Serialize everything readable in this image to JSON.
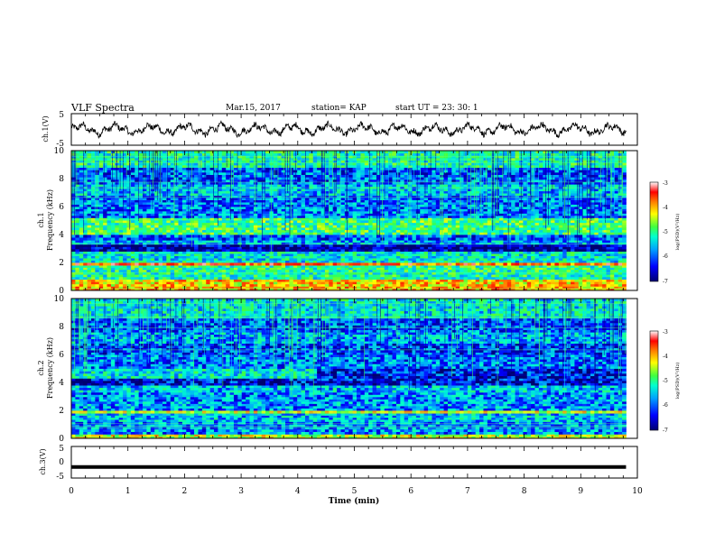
{
  "header": {
    "title": "VLF Spectra",
    "date": "Mar.15, 2017",
    "station": "station= KAP",
    "start_ut": "start  UT  =   23: 30: 1"
  },
  "chart_data": [
    {
      "id": "ch1_waveform",
      "type": "line",
      "ylabel": "ch.1(V)",
      "ylim": [
        -5,
        5
      ],
      "yticks": [
        "5",
        "-5"
      ],
      "xlim": [
        0,
        10
      ],
      "x_end": 9.8,
      "trace_color": "#000000",
      "baseline": 0.0,
      "amplitude": 2.0
    },
    {
      "id": "ch1_spectrogram",
      "type": "heatmap",
      "ylabel_channel": "ch.1",
      "ylabel": "Frequency (kHz)",
      "ylim": [
        0,
        10
      ],
      "yticks": [
        "0",
        "2",
        "4",
        "6",
        "8",
        "10"
      ],
      "xlim": [
        0,
        10
      ],
      "x_end": 9.8,
      "bands": [
        {
          "from": 0.0,
          "to": 0.3,
          "level": -4.2
        },
        {
          "from": 0.3,
          "to": 0.8,
          "level": -4.3
        },
        {
          "from": 0.8,
          "to": 1.5,
          "level": -5.4
        },
        {
          "from": 1.5,
          "to": 1.8,
          "level": -5.3
        },
        {
          "from": 1.8,
          "to": 2.0,
          "level": -3.8
        },
        {
          "from": 2.0,
          "to": 2.8,
          "level": -5.6
        },
        {
          "from": 2.8,
          "to": 3.3,
          "level": -6.8
        },
        {
          "from": 3.3,
          "to": 3.6,
          "level": -5.9
        },
        {
          "from": 3.6,
          "to": 4.0,
          "level": -6.2
        },
        {
          "from": 4.0,
          "to": 5.2,
          "level": -5.2
        },
        {
          "from": 5.2,
          "to": 6.8,
          "level": -6.1
        },
        {
          "from": 6.8,
          "to": 7.6,
          "level": -5.8
        },
        {
          "from": 7.6,
          "to": 8.8,
          "level": -6.2
        },
        {
          "from": 8.8,
          "to": 10.0,
          "level": -5.4
        }
      ],
      "colorbar": {
        "ticks": [
          "-3",
          "-4",
          "-5",
          "-6",
          "-7"
        ],
        "range": [
          -7,
          -3
        ],
        "label": "log(PSD)(V²/Hz)"
      }
    },
    {
      "id": "ch2_spectrogram",
      "type": "heatmap",
      "ylabel_channel": "ch.2",
      "ylabel": "Frequency (kHz)",
      "ylim": [
        0,
        10
      ],
      "yticks": [
        "0",
        "2",
        "4",
        "6",
        "8",
        "10"
      ],
      "xlim": [
        0,
        10
      ],
      "x_end": 9.8,
      "bands": [
        {
          "from": 0.0,
          "to": 0.3,
          "level": -4.6
        },
        {
          "from": 0.3,
          "to": 1.2,
          "level": -6.0
        },
        {
          "from": 1.2,
          "to": 1.8,
          "level": -5.8
        },
        {
          "from": 1.8,
          "to": 2.0,
          "level": -4.6
        },
        {
          "from": 2.0,
          "to": 3.3,
          "level": -6.0
        },
        {
          "from": 3.3,
          "to": 3.8,
          "level": -5.8
        },
        {
          "from": 3.8,
          "to": 4.3,
          "level": -6.6
        },
        {
          "from": 4.3,
          "to": 5.0,
          "level": -5.6
        },
        {
          "from": 5.0,
          "to": 6.0,
          "level": -6.1
        },
        {
          "from": 6.0,
          "to": 6.8,
          "level": -6.3
        },
        {
          "from": 6.8,
          "to": 7.6,
          "level": -5.9
        },
        {
          "from": 7.6,
          "to": 8.6,
          "level": -6.2
        },
        {
          "from": 8.6,
          "to": 10.0,
          "level": -5.6
        }
      ],
      "colorbar": {
        "ticks": [
          "-3",
          "-4",
          "-5",
          "-6",
          "-7"
        ],
        "range": [
          -7,
          -3
        ],
        "label": "log(PSD)(V²/Hz)"
      }
    },
    {
      "id": "ch3_waveform",
      "type": "line",
      "ylabel": "ch.3(V)",
      "ylim": [
        -5,
        5
      ],
      "yticks": [
        "5",
        "0",
        "-5"
      ],
      "xlim": [
        0,
        10
      ],
      "x_end": 9.8,
      "trace_color": "#000000",
      "baseline": -1.5,
      "amplitude": 0.0
    }
  ],
  "xaxis": {
    "label": "Time (min)",
    "ticks": [
      "0",
      "1",
      "2",
      "3",
      "4",
      "5",
      "6",
      "7",
      "8",
      "9",
      "10"
    ]
  },
  "colormap": [
    "#000070",
    "#0000ff",
    "#00a0ff",
    "#00ffd0",
    "#40ff40",
    "#ffff00",
    "#ff8000",
    "#ff0000",
    "#ffffff"
  ]
}
